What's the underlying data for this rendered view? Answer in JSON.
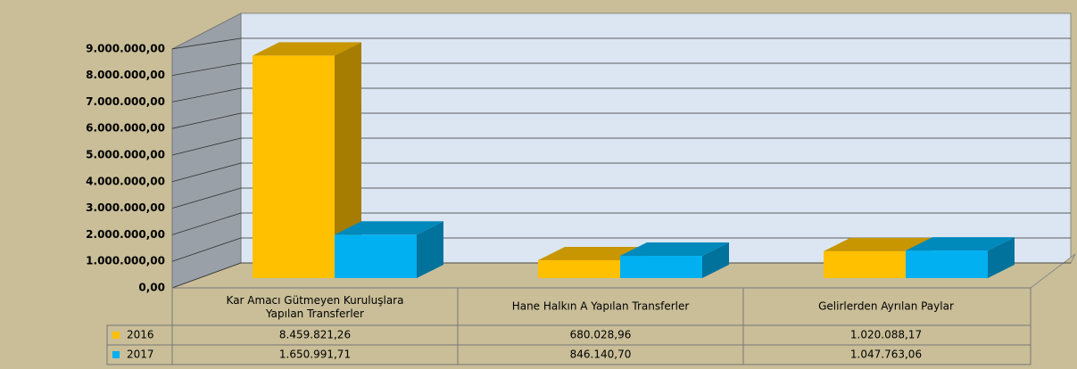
{
  "chart_data": {
    "type": "bar3d",
    "categories": [
      "Kar Amacı Gütmeyen Kuruluşlara Yapılan Transferler",
      "Hane Halkın A Yapılan Transferler",
      "Gelirlerden Ayrılan Paylar"
    ],
    "series": [
      {
        "name": "2016",
        "color": "#FFC000",
        "values": [
          8459821.26,
          680028.96,
          1020088.17
        ],
        "value_labels": [
          "8.459.821,26",
          "680.028,96",
          "1.020.088,17"
        ]
      },
      {
        "name": "2017",
        "color": "#00B0F0",
        "values": [
          1650991.71,
          846140.7,
          1047763.06
        ],
        "value_labels": [
          "1.650.991,71",
          "846.140,70",
          "1.047.763,06"
        ]
      }
    ],
    "ylim": [
      0,
      10000000
    ],
    "yticks": [
      {
        "value": 0,
        "label": "0,00"
      },
      {
        "value": 1000000,
        "label": "1.000.000,00"
      },
      {
        "value": 2000000,
        "label": "2.000.000,00"
      },
      {
        "value": 3000000,
        "label": "3.000.000,00"
      },
      {
        "value": 4000000,
        "label": "4.000.000,00"
      },
      {
        "value": 5000000,
        "label": "5.000.000,00"
      },
      {
        "value": 6000000,
        "label": "6.000.000,00"
      },
      {
        "value": 7000000,
        "label": "7.000.000,00"
      },
      {
        "value": 8000000,
        "label": "8.000.000,00"
      },
      {
        "value": 9000000,
        "label": "9.000.000,00"
      }
    ],
    "grid": true
  }
}
